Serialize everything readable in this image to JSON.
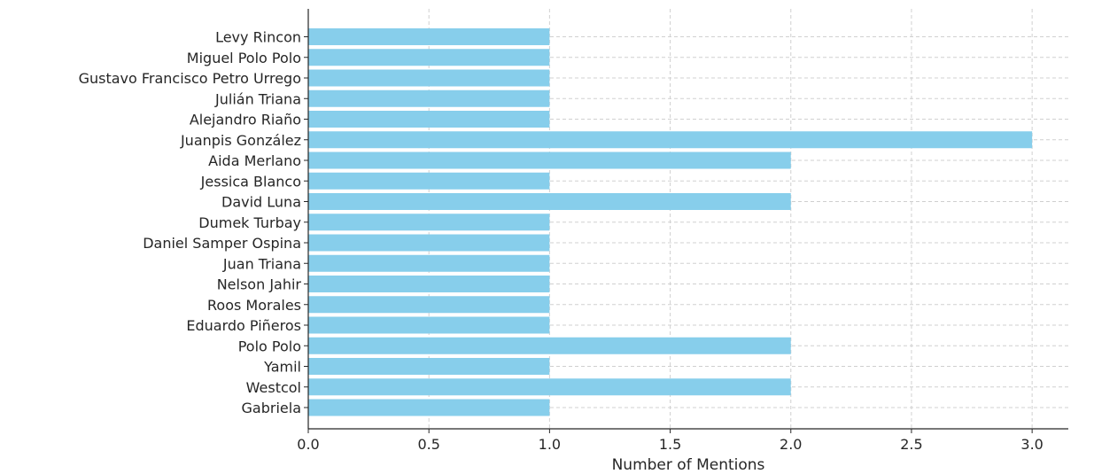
{
  "chart_data": {
    "type": "bar",
    "orientation": "horizontal",
    "categories": [
      "Levy Rincon",
      "Miguel Polo Polo",
      "Gustavo Francisco Petro Urrego",
      "Julián Triana",
      "Alejandro Riaño",
      "Juanpis González",
      "Aida Merlano",
      "Jessica Blanco",
      "David Luna",
      "Dumek Turbay",
      "Daniel Samper Ospina",
      "Juan Triana",
      "Nelson Jahir",
      "Roos Morales",
      "Eduardo Piñeros",
      "Polo Polo",
      "Yamil",
      "Westcol",
      "Gabriela"
    ],
    "values": [
      1,
      1,
      1,
      1,
      1,
      3,
      2,
      1,
      2,
      1,
      1,
      1,
      1,
      1,
      1,
      2,
      1,
      2,
      1
    ],
    "title": "",
    "xlabel": "Number of Mentions",
    "ylabel": "",
    "xlim": [
      0,
      3.15
    ],
    "xticks": [
      "0.0",
      "0.5",
      "1.0",
      "1.5",
      "2.0",
      "2.5",
      "3.0"
    ],
    "grid": true,
    "bar_color": "#87ceeb"
  }
}
